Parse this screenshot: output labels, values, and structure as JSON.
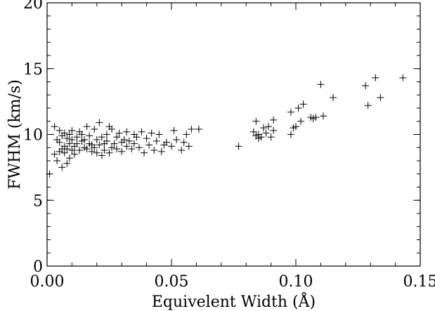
{
  "chart_data": {
    "type": "scatter",
    "title": "",
    "xlabel": "Equivelent Width (Å)",
    "ylabel": "FWHM (km/s)",
    "xlim": [
      0,
      0.15
    ],
    "ylim": [
      0,
      20
    ],
    "xticks": [
      0.0,
      0.05,
      0.1,
      0.15
    ],
    "xtick_labels": [
      "0.00",
      "0.05",
      "0.10",
      "0.15"
    ],
    "yticks": [
      0,
      5,
      10,
      15,
      20
    ],
    "ytick_labels": [
      "0",
      "5",
      "10",
      "15",
      "20"
    ],
    "x_minor_step": 0.01,
    "y_minor_step": 1,
    "grid": false,
    "marker": "plus",
    "series": [
      {
        "points": [
          [
            0.001,
            7.0
          ],
          [
            0.003,
            10.6
          ],
          [
            0.003,
            8.5
          ],
          [
            0.004,
            9.6
          ],
          [
            0.004,
            8.0
          ],
          [
            0.005,
            10.3
          ],
          [
            0.005,
            8.7
          ],
          [
            0.005,
            9.4
          ],
          [
            0.006,
            9.9
          ],
          [
            0.006,
            7.5
          ],
          [
            0.006,
            8.9
          ],
          [
            0.007,
            10.1
          ],
          [
            0.007,
            8.6
          ],
          [
            0.007,
            9.1
          ],
          [
            0.008,
            8.9
          ],
          [
            0.008,
            7.8
          ],
          [
            0.008,
            9.7
          ],
          [
            0.009,
            9.3
          ],
          [
            0.009,
            8.2
          ],
          [
            0.009,
            10.0
          ],
          [
            0.01,
            8.8
          ],
          [
            0.01,
            9.6
          ],
          [
            0.01,
            10.3
          ],
          [
            0.011,
            9.1
          ],
          [
            0.011,
            8.5
          ],
          [
            0.012,
            9.8
          ],
          [
            0.012,
            9.3
          ],
          [
            0.013,
            10.2
          ],
          [
            0.013,
            8.8
          ],
          [
            0.014,
            9.5
          ],
          [
            0.014,
            10.0
          ],
          [
            0.015,
            9.0
          ],
          [
            0.015,
            9.6
          ],
          [
            0.016,
            10.6
          ],
          [
            0.016,
            8.9
          ],
          [
            0.017,
            9.3
          ],
          [
            0.017,
            9.9
          ],
          [
            0.018,
            8.7
          ],
          [
            0.018,
            9.2
          ],
          [
            0.019,
            10.4
          ],
          [
            0.019,
            9.0
          ],
          [
            0.02,
            9.6
          ],
          [
            0.02,
            8.6
          ],
          [
            0.021,
            10.9
          ],
          [
            0.021,
            9.2
          ],
          [
            0.022,
            8.4
          ],
          [
            0.022,
            9.8
          ],
          [
            0.023,
            9.3
          ],
          [
            0.023,
            8.8
          ],
          [
            0.024,
            10.0
          ],
          [
            0.024,
            9.5
          ],
          [
            0.025,
            10.6
          ],
          [
            0.025,
            8.6
          ],
          [
            0.026,
            9.0
          ],
          [
            0.026,
            10.4
          ],
          [
            0.027,
            9.3
          ],
          [
            0.028,
            8.9
          ],
          [
            0.028,
            9.8
          ],
          [
            0.029,
            10.1
          ],
          [
            0.03,
            9.4
          ],
          [
            0.03,
            8.7
          ],
          [
            0.031,
            9.6
          ],
          [
            0.032,
            10.2
          ],
          [
            0.032,
            9.1
          ],
          [
            0.033,
            9.5
          ],
          [
            0.034,
            8.9
          ],
          [
            0.035,
            10.0
          ],
          [
            0.035,
            9.3
          ],
          [
            0.036,
            9.8
          ],
          [
            0.037,
            9.0
          ],
          [
            0.038,
            10.2
          ],
          [
            0.039,
            8.6
          ],
          [
            0.04,
            9.7
          ],
          [
            0.041,
            9.2
          ],
          [
            0.042,
            10.1
          ],
          [
            0.043,
            8.8
          ],
          [
            0.044,
            9.5
          ],
          [
            0.045,
            10.0
          ],
          [
            0.046,
            8.7
          ],
          [
            0.047,
            9.2
          ],
          [
            0.048,
            9.4
          ],
          [
            0.05,
            9.1
          ],
          [
            0.051,
            10.3
          ],
          [
            0.052,
            9.6
          ],
          [
            0.054,
            8.8
          ],
          [
            0.055,
            9.4
          ],
          [
            0.056,
            10.0
          ],
          [
            0.057,
            9.1
          ],
          [
            0.058,
            10.4
          ],
          [
            0.061,
            10.4
          ],
          [
            0.077,
            9.1
          ],
          [
            0.083,
            10.2
          ],
          [
            0.084,
            11.0
          ],
          [
            0.084,
            9.9
          ],
          [
            0.085,
            9.7
          ],
          [
            0.085,
            10.0
          ],
          [
            0.086,
            9.8
          ],
          [
            0.087,
            10.5
          ],
          [
            0.088,
            10.1
          ],
          [
            0.089,
            10.6
          ],
          [
            0.09,
            9.8
          ],
          [
            0.091,
            10.3
          ],
          [
            0.091,
            11.1
          ],
          [
            0.098,
            10.0
          ],
          [
            0.098,
            11.7
          ],
          [
            0.099,
            10.5
          ],
          [
            0.1,
            10.6
          ],
          [
            0.101,
            12.0
          ],
          [
            0.102,
            11.0
          ],
          [
            0.103,
            12.3
          ],
          [
            0.106,
            11.3
          ],
          [
            0.107,
            11.2
          ],
          [
            0.108,
            11.3
          ],
          [
            0.11,
            13.8
          ],
          [
            0.111,
            11.4
          ],
          [
            0.115,
            12.8
          ],
          [
            0.128,
            13.7
          ],
          [
            0.129,
            12.2
          ],
          [
            0.132,
            14.3
          ],
          [
            0.134,
            12.8
          ],
          [
            0.143,
            14.3
          ]
        ]
      }
    ]
  }
}
